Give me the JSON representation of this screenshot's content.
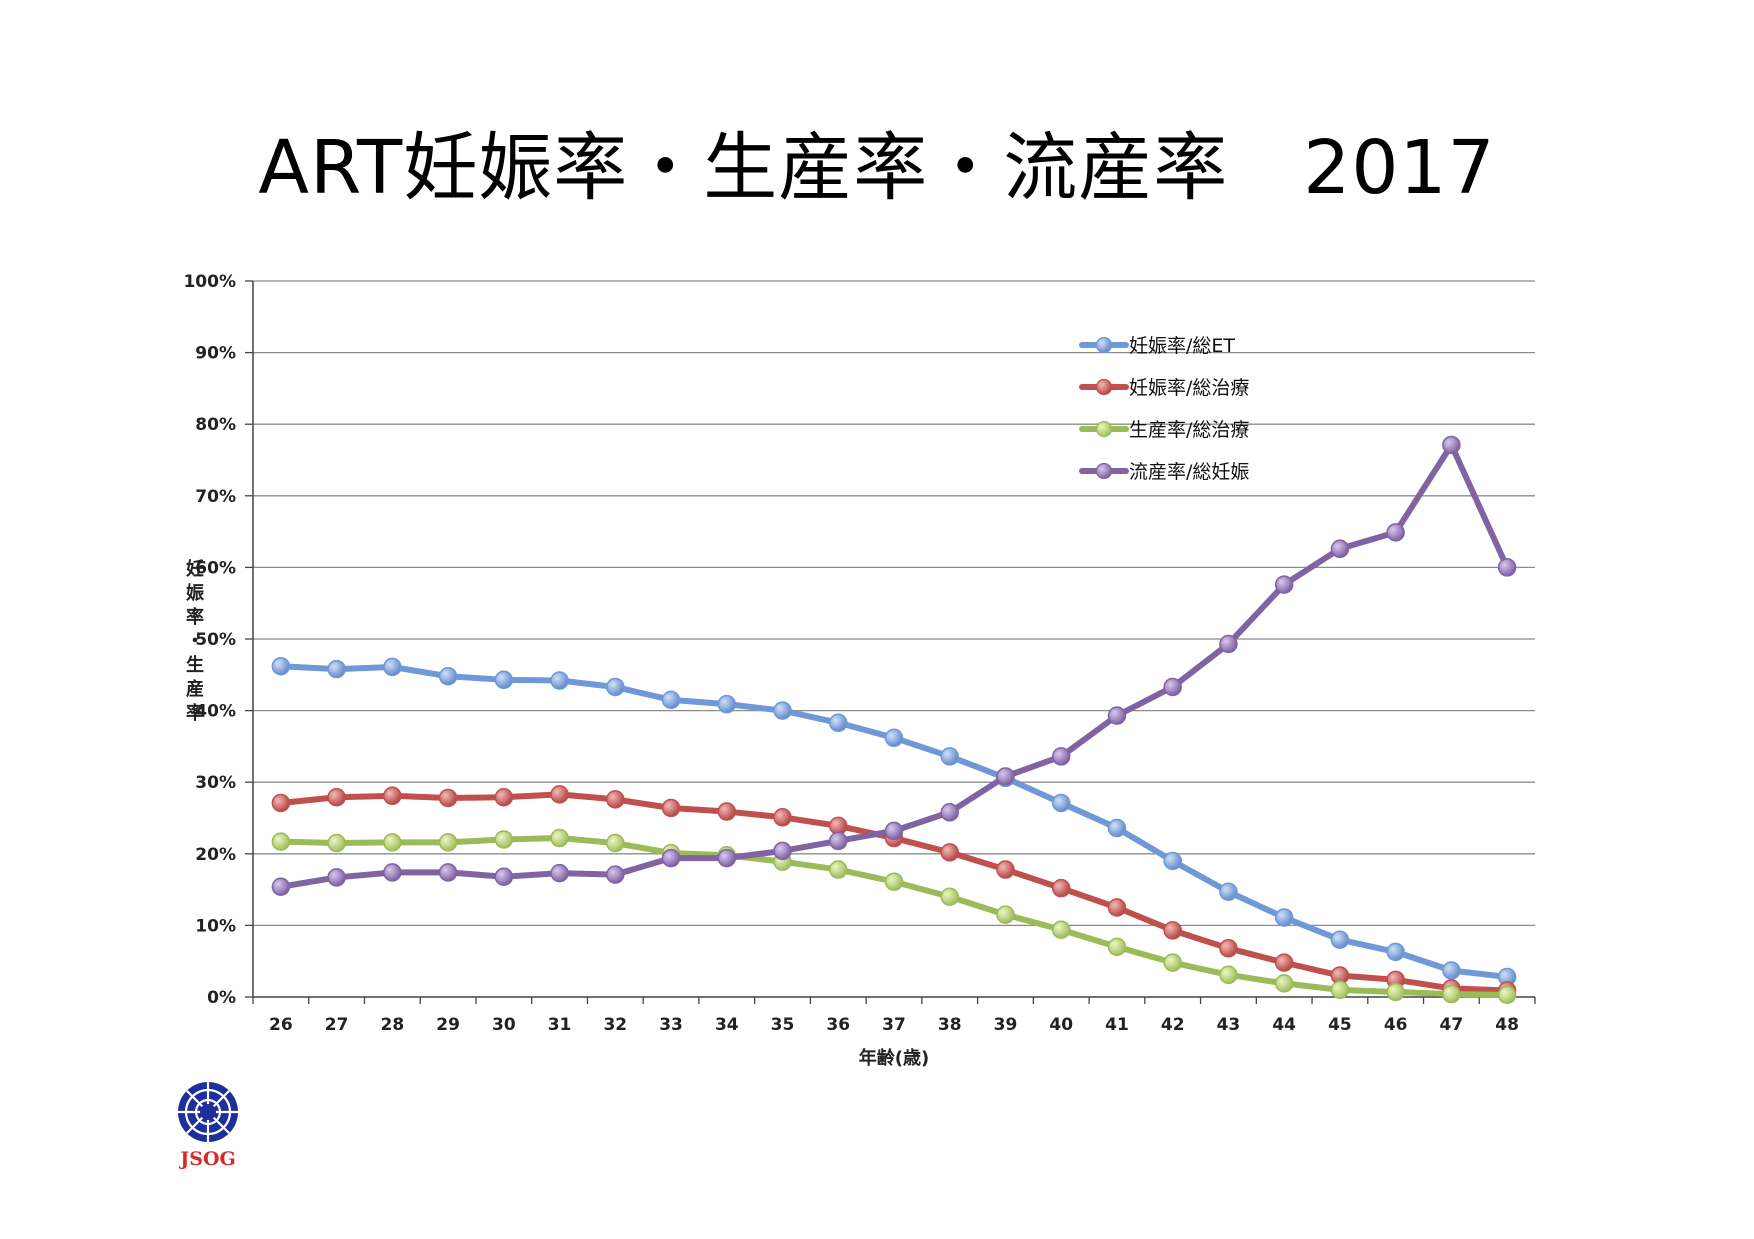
{
  "title": "ART妊娠率・生産率・流産率　2017",
  "logo_text": "JSOG",
  "colors": {
    "blue": "#6f98d6",
    "red": "#c0504d",
    "green": "#9bbb59",
    "purple": "#8064a2",
    "grid": "#8c8c8c"
  },
  "chart_data": {
    "type": "line",
    "title": "ART妊娠率・生産率・流産率　2017",
    "xlabel": "年齢(歳)",
    "ylabel": "妊娠率・生産率",
    "ylim": [
      0,
      100
    ],
    "grid": true,
    "legend_position": "top-right",
    "y_ticks": [
      "0%",
      "10%",
      "20%",
      "30%",
      "40%",
      "50%",
      "60%",
      "70%",
      "80%",
      "90%",
      "100%"
    ],
    "categories": [
      "26",
      "27",
      "28",
      "29",
      "30",
      "31",
      "32",
      "33",
      "34",
      "35",
      "36",
      "37",
      "38",
      "39",
      "40",
      "41",
      "42",
      "43",
      "44",
      "45",
      "46",
      "47",
      "48"
    ],
    "series": [
      {
        "name": "妊娠率/総ET",
        "color": "#6f98d6",
        "values": [
          46.2,
          45.8,
          46.1,
          44.8,
          44.3,
          44.2,
          43.3,
          41.5,
          40.9,
          40.0,
          38.3,
          36.2,
          33.6,
          30.6,
          27.1,
          23.6,
          19.0,
          14.7,
          11.1,
          8.0,
          6.3,
          3.7,
          2.8
        ]
      },
      {
        "name": "妊娠率/総治療",
        "color": "#c0504d",
        "values": [
          27.1,
          27.9,
          28.1,
          27.8,
          27.9,
          28.3,
          27.6,
          26.4,
          25.9,
          25.1,
          23.9,
          22.2,
          20.2,
          17.8,
          15.2,
          12.5,
          9.3,
          6.8,
          4.8,
          3.0,
          2.4,
          1.2,
          0.9
        ]
      },
      {
        "name": "生産率/総治療",
        "color": "#9bbb59",
        "values": [
          21.7,
          21.5,
          21.6,
          21.6,
          22.0,
          22.2,
          21.5,
          20.1,
          19.8,
          18.9,
          17.8,
          16.1,
          14.0,
          11.5,
          9.4,
          7.0,
          4.8,
          3.1,
          1.9,
          1.0,
          0.7,
          0.4,
          0.3
        ]
      },
      {
        "name": "流産率/総妊娠",
        "color": "#8064a2",
        "values": [
          15.4,
          16.7,
          17.4,
          17.4,
          16.8,
          17.3,
          17.1,
          19.4,
          19.4,
          20.4,
          21.8,
          23.2,
          25.8,
          30.8,
          33.6,
          39.3,
          43.3,
          49.3,
          57.6,
          62.6,
          64.9,
          77.1,
          60.0
        ]
      }
    ]
  }
}
